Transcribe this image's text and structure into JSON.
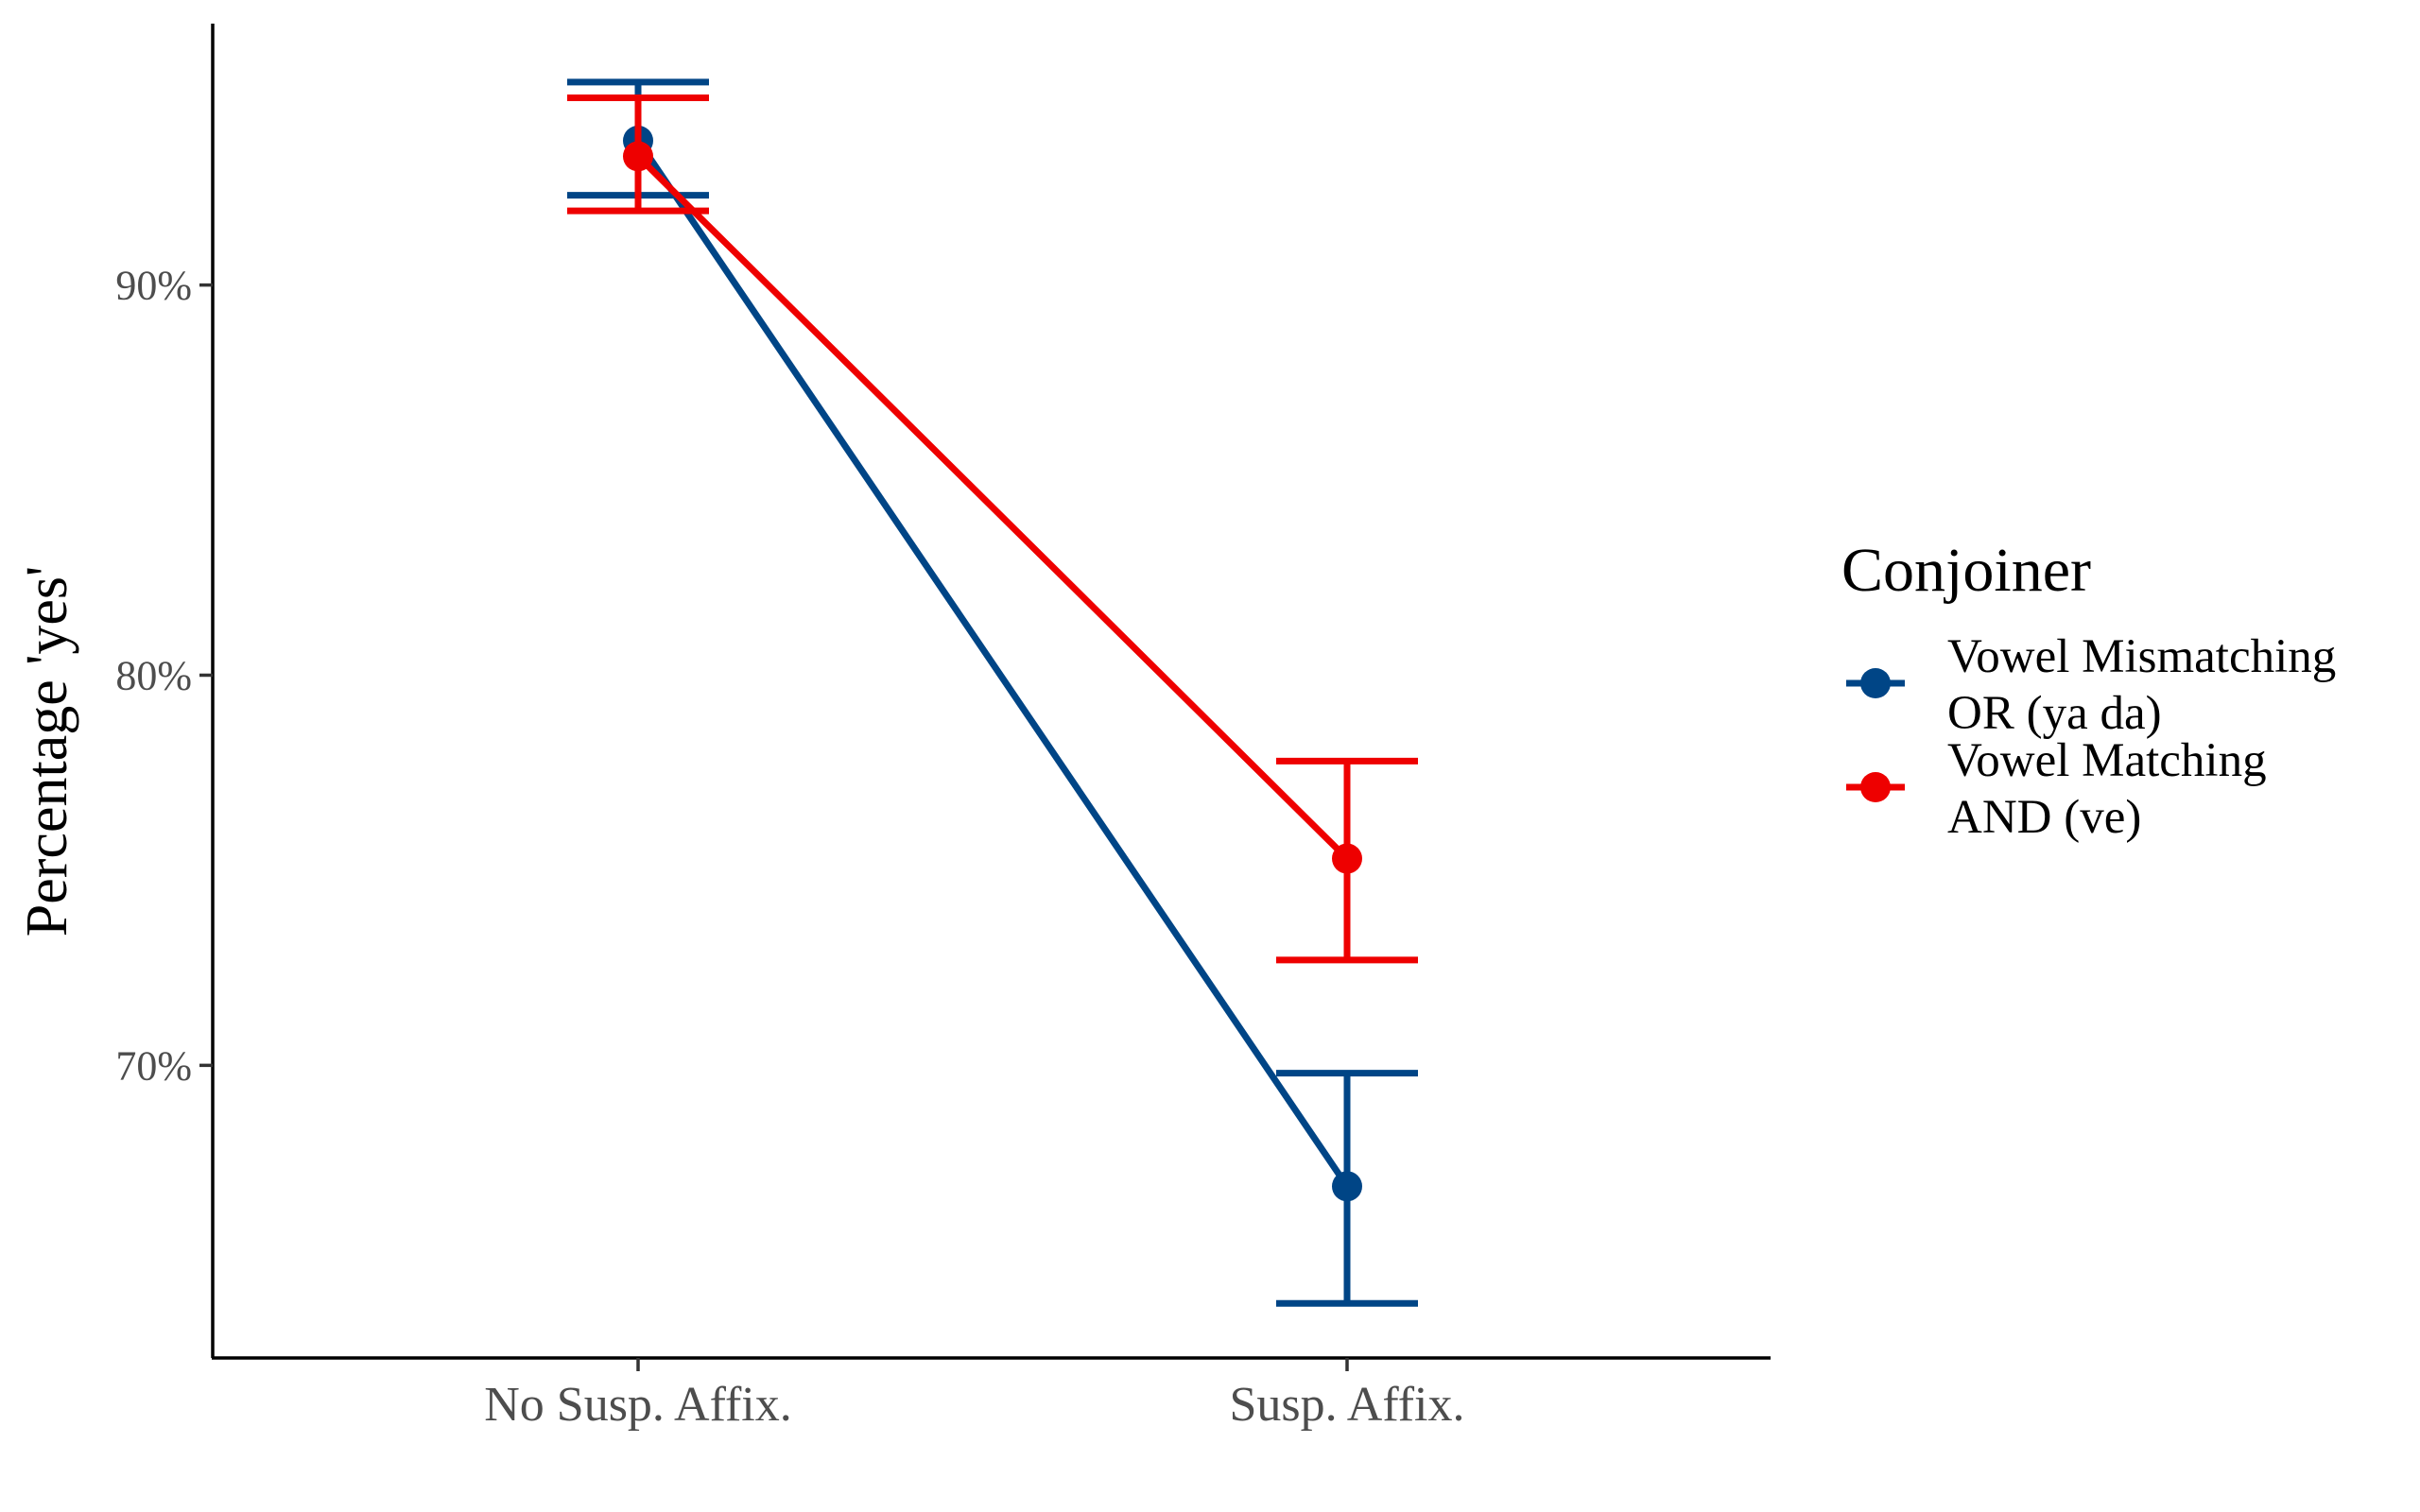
{
  "chart_data": {
    "type": "line",
    "categories": [
      "No Susp. Affix.",
      "Susp. Affix."
    ],
    "ylabel": "Percentage 'yes'",
    "xlabel": "",
    "ylim": [
      62.5,
      96.7
    ],
    "yticks": [
      70,
      80,
      90
    ],
    "ytick_labels": [
      "70%",
      "80%",
      "90%"
    ],
    "grid": false,
    "legend": {
      "title": "Conjoiner",
      "position": "right"
    },
    "series": [
      {
        "name": "Vowel Mismatching OR (ya da)",
        "name_lines": [
          "Vowel Mismatching",
          "OR (ya da)"
        ],
        "color": "#004586",
        "values": [
          93.7,
          66.9
        ],
        "error_low": [
          92.3,
          63.9
        ],
        "error_high": [
          95.2,
          69.8
        ]
      },
      {
        "name": "Vowel Matching AND (ve)",
        "name_lines": [
          "Vowel Matching",
          "AND (ve)"
        ],
        "color": "#ee0000",
        "values": [
          93.3,
          75.3
        ],
        "error_low": [
          91.9,
          72.7
        ],
        "error_high": [
          94.8,
          77.8
        ]
      }
    ]
  }
}
